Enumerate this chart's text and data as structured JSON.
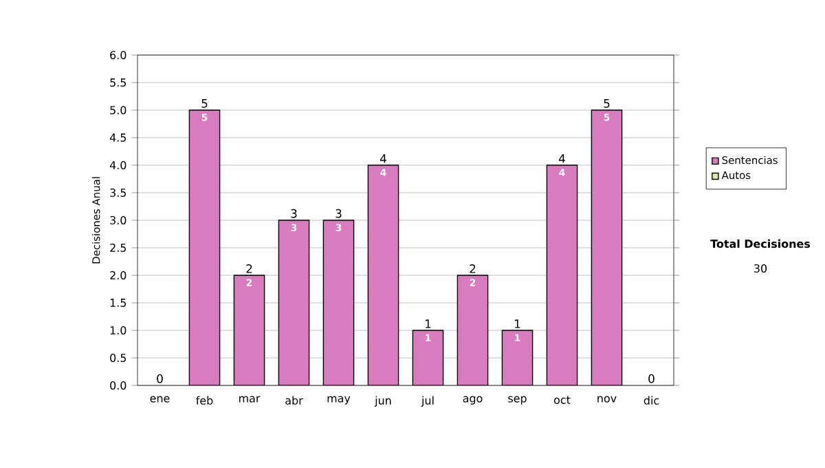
{
  "chart_data": {
    "type": "bar",
    "stacked": true,
    "ylabel": "Decisiones Anual",
    "categories": [
      "ene",
      "feb",
      "mar",
      "abr",
      "may",
      "jun",
      "jul",
      "ago",
      "sep",
      "oct",
      "nov",
      "dic"
    ],
    "series": [
      {
        "name": "Sentencias",
        "color": "#d97cbf",
        "values": [
          0,
          5,
          2,
          3,
          3,
          4,
          1,
          2,
          1,
          4,
          5,
          0
        ],
        "value_labels": [
          null,
          "5",
          "2",
          "3",
          "3",
          "4",
          "1",
          "2",
          "1",
          "4",
          "5",
          null
        ]
      },
      {
        "name": "Autos",
        "color": "#d6efa0",
        "values": [
          0,
          0,
          0,
          0,
          0,
          0,
          0,
          0,
          0,
          0,
          0,
          0
        ]
      }
    ],
    "totals": [
      "0",
      "5",
      "2",
      "3",
      "3",
      "4",
      "1",
      "2",
      "1",
      "4",
      "5",
      "0"
    ],
    "ylim": [
      0,
      6
    ],
    "yticks": [
      {
        "value": 0,
        "label": "0.0"
      },
      {
        "value": 0.5,
        "label": "0.5"
      },
      {
        "value": 1,
        "label": "1.0"
      },
      {
        "value": 1.5,
        "label": "1.5"
      },
      {
        "value": 2,
        "label": "2.0"
      },
      {
        "value": 2.5,
        "label": "2.5"
      },
      {
        "value": 3,
        "label": "3.0"
      },
      {
        "value": 3.5,
        "label": "3.5"
      },
      {
        "value": 4,
        "label": "4.0"
      },
      {
        "value": 4.5,
        "label": "4.5"
      },
      {
        "value": 5,
        "label": "5.0"
      },
      {
        "value": 5.5,
        "label": "5.5"
      },
      {
        "value": 6,
        "label": "6.0"
      }
    ],
    "grid": "y",
    "legend": "right",
    "annotations": [
      "Total Decisiones",
      "30"
    ]
  }
}
